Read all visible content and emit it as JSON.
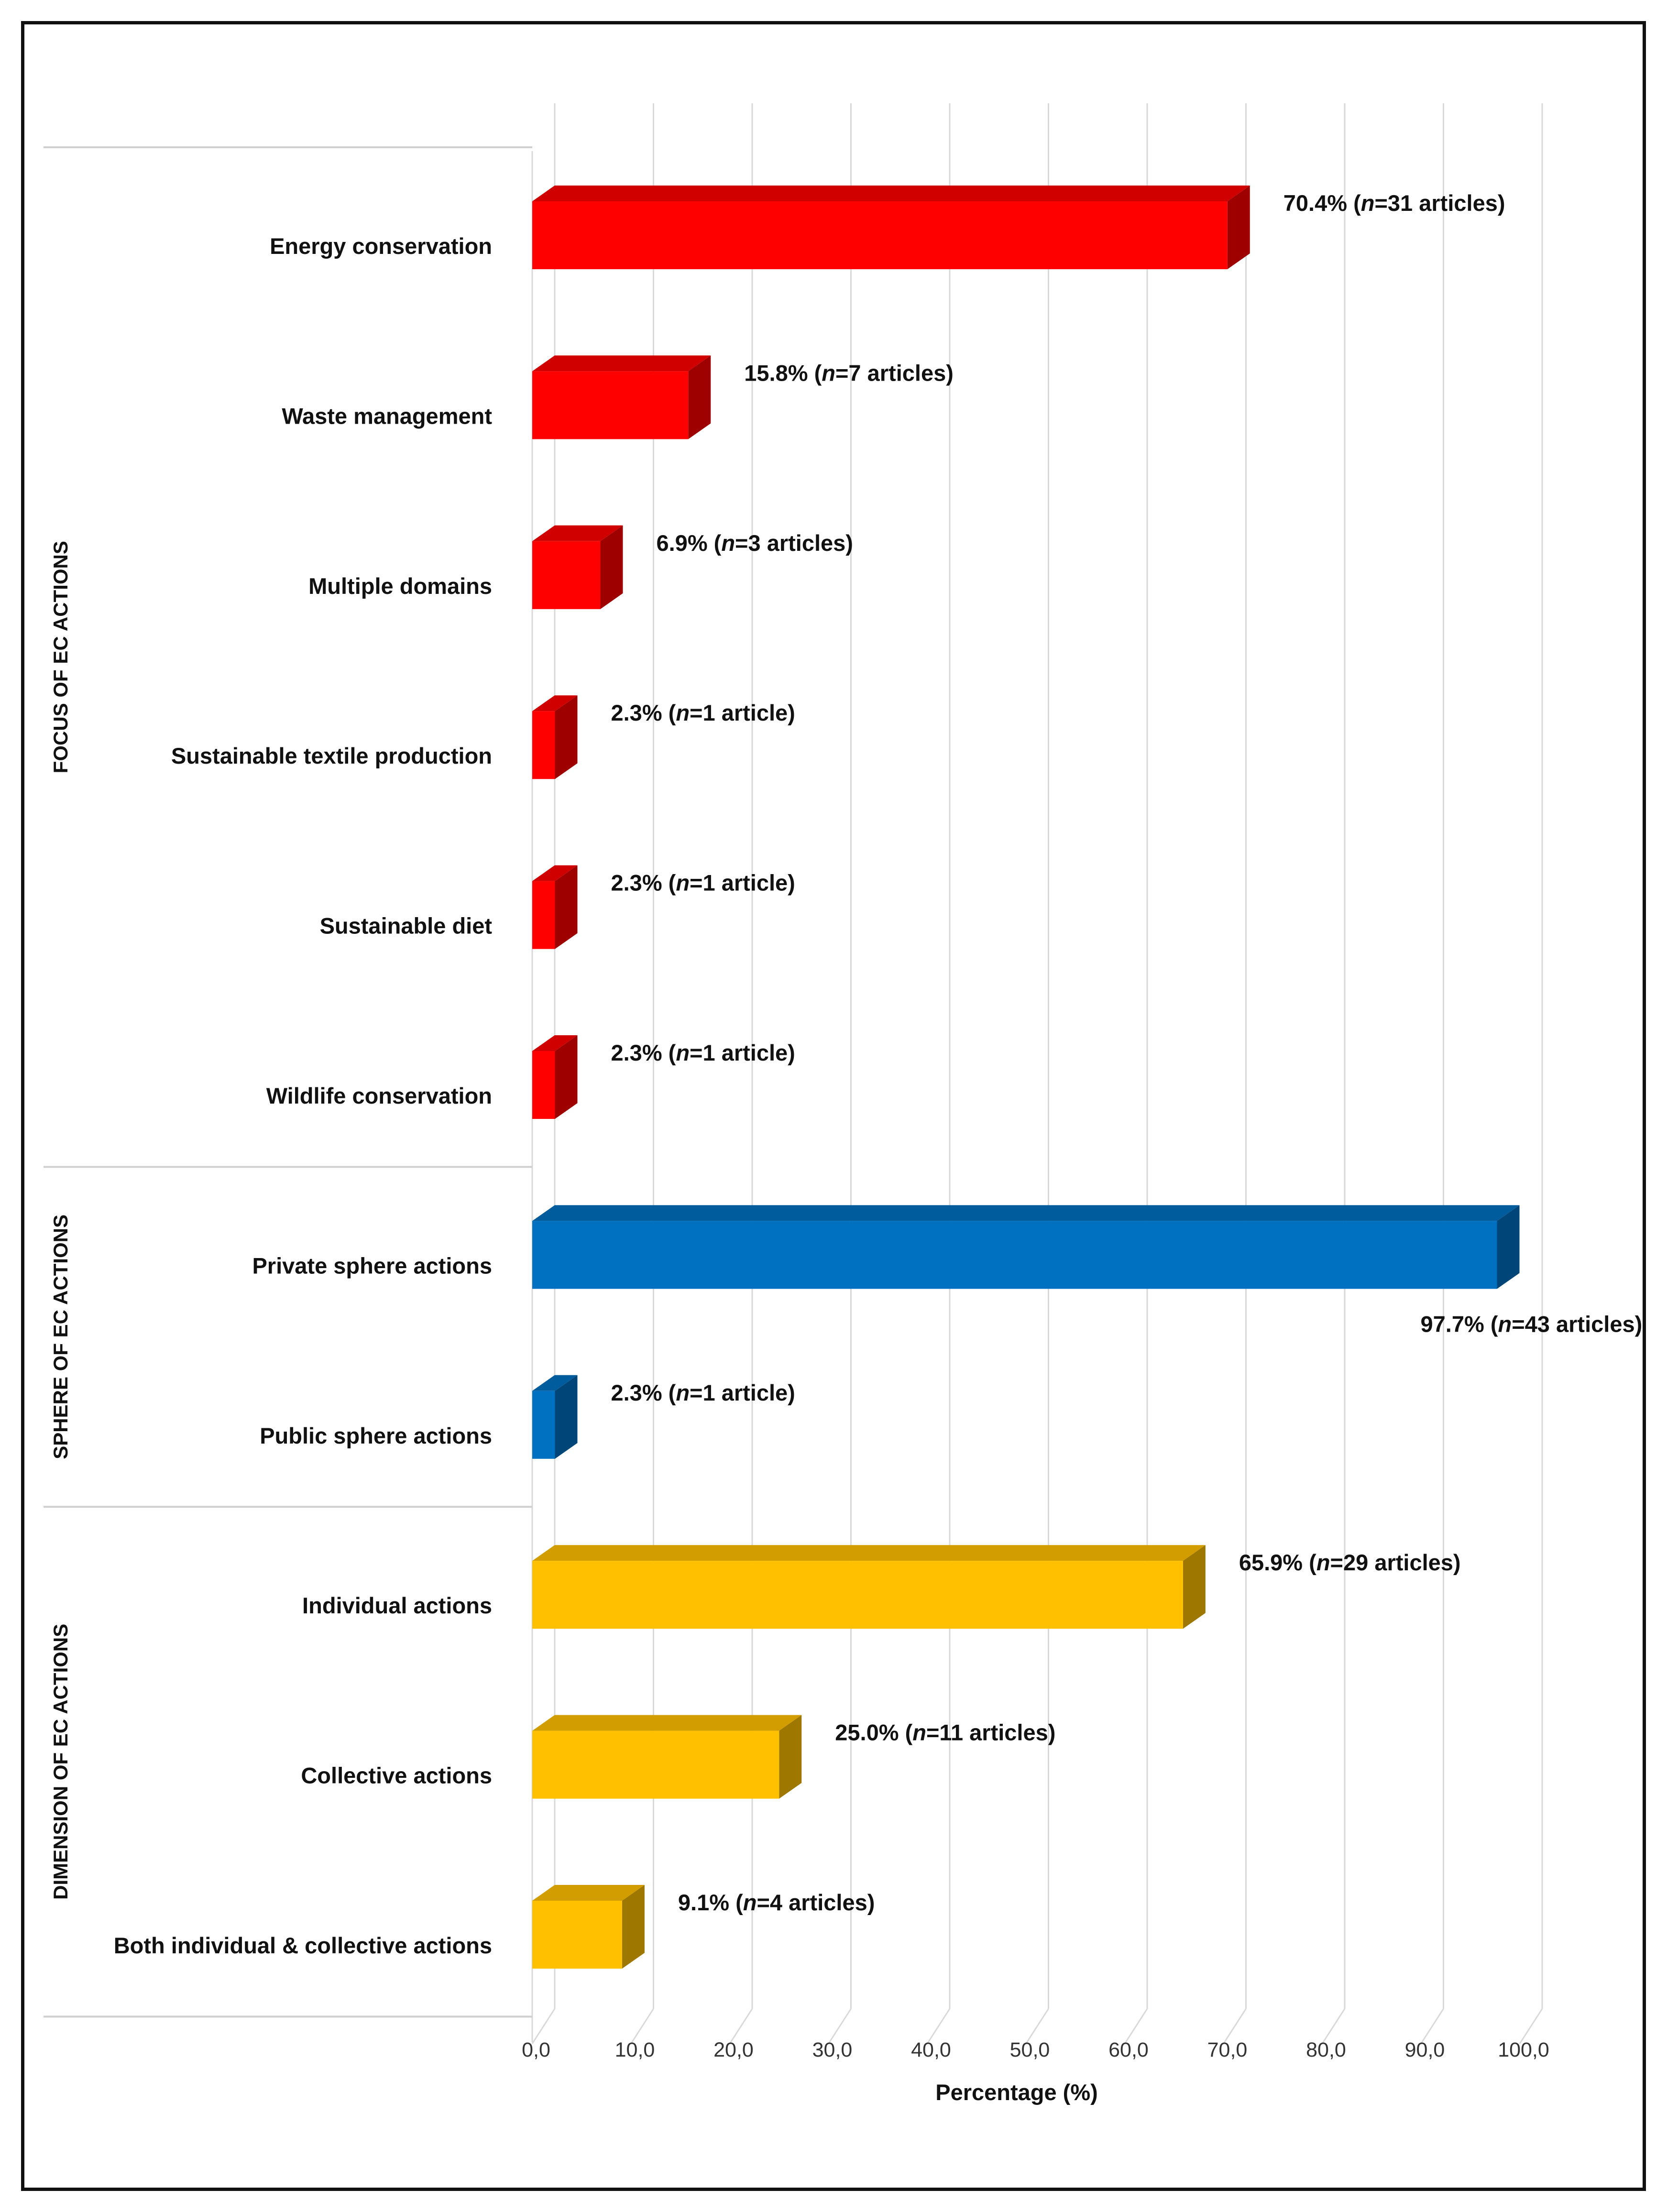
{
  "chart_data": {
    "type": "bar",
    "orientation": "horizontal",
    "style": "3d",
    "xlabel": "Percentage (%)",
    "xlim": [
      0,
      100
    ],
    "x_ticks": [
      "0,0",
      "10,0",
      "20,0",
      "30,0",
      "40,0",
      "50,0",
      "60,0",
      "70,0",
      "80,0",
      "90,0",
      "100,0"
    ],
    "grid": "vertical",
    "groups": [
      {
        "name": "FOCUS OF EC ACTIONS",
        "color": "#ff0000",
        "items": [
          {
            "category": "Energy conservation",
            "value": 70.4,
            "pct": "70.4% (",
            "n": "n",
            "count": "=31 articles)"
          },
          {
            "category": "Waste management",
            "value": 15.8,
            "pct": "15.8% (",
            "n": "n",
            "count": "=7 articles)"
          },
          {
            "category": "Multiple domains",
            "value": 6.9,
            "pct": "6.9% (",
            "n": "n",
            "count": "=3 articles)"
          },
          {
            "category": "Sustainable textile production",
            "value": 2.3,
            "pct": "2.3% (",
            "n": "n",
            "count": "=1 article)"
          },
          {
            "category": "Sustainable diet",
            "value": 2.3,
            "pct": "2.3% (",
            "n": "n",
            "count": "=1 article)"
          },
          {
            "category": "Wildlife conservation",
            "value": 2.3,
            "pct": "2.3% (",
            "n": "n",
            "count": "=1 article)"
          }
        ]
      },
      {
        "name": "SPHERE OF EC ACTIONS",
        "color": "#0070c0",
        "items": [
          {
            "category": "Private sphere actions",
            "value": 97.7,
            "pct": "97.7% (",
            "n": "n",
            "count": "=43 articles)"
          },
          {
            "category": "Public sphere actions",
            "value": 2.3,
            "pct": "2.3% (",
            "n": "n",
            "count": "=1 article)"
          }
        ]
      },
      {
        "name": "DIMENSION OF EC ACTIONS",
        "color": "#ffc000",
        "items": [
          {
            "category": "Individual actions",
            "value": 65.9,
            "pct": "65.9% (",
            "n": "n",
            "count": "=29 articles)"
          },
          {
            "category": "Collective actions",
            "value": 25.0,
            "pct": "25.0% (",
            "n": "n",
            "count": "=11 articles)"
          },
          {
            "category": "Both individual & collective actions",
            "value": 9.1,
            "pct": "9.1% (",
            "n": "n",
            "count": "=4 articles)"
          }
        ]
      }
    ]
  }
}
